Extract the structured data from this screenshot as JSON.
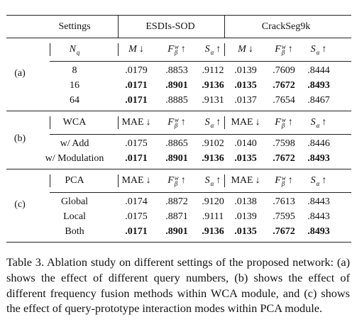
{
  "header": {
    "setting": "Settings",
    "groups": [
      "ESDIs-SOD",
      "CrackSeg9k"
    ]
  },
  "sections": [
    {
      "label": "(a)",
      "header": {
        "setting": {
          "symbol": "N",
          "sub": "q"
        },
        "metrics": [
          {
            "symbol": "M",
            "arrow": "↓"
          },
          {
            "symbol": "F",
            "sup": "w",
            "sub": "β",
            "arrow": "↑"
          },
          {
            "symbol": "S",
            "sub": "α",
            "arrow": "↑"
          },
          {
            "symbol": "M",
            "arrow": "↓"
          },
          {
            "symbol": "F",
            "sup": "w",
            "sub": "β",
            "arrow": "↑"
          },
          {
            "symbol": "S",
            "sub": "α",
            "arrow": "↑"
          }
        ]
      },
      "rows": [
        {
          "setting": "8",
          "values": [
            ".0179",
            ".8853",
            ".9112",
            ".0139",
            ".7609",
            ".8444"
          ],
          "bold": [
            false,
            false,
            false,
            false,
            false,
            false
          ]
        },
        {
          "setting": "16",
          "values": [
            ".0171",
            ".8901",
            ".9136",
            ".0135",
            ".7672",
            ".8493"
          ],
          "bold": [
            true,
            true,
            true,
            true,
            true,
            true
          ]
        },
        {
          "setting": "64",
          "values": [
            ".0171",
            ".8885",
            ".9131",
            ".0137",
            ".7654",
            ".8467"
          ],
          "bold": [
            true,
            false,
            false,
            false,
            false,
            false
          ]
        }
      ]
    },
    {
      "label": "(b)",
      "header": {
        "setting": {
          "symbol": "WCA"
        },
        "metrics": [
          {
            "symbol": "MAE",
            "arrow": "↓"
          },
          {
            "symbol": "F",
            "sup": "w",
            "sub": "β",
            "arrow": "↑"
          },
          {
            "symbol": "S",
            "sub": "α",
            "arrow": "↑"
          },
          {
            "symbol": "MAE",
            "arrow": "↓"
          },
          {
            "symbol": "F",
            "sup": "w",
            "sub": "β",
            "arrow": "↑"
          },
          {
            "symbol": "S",
            "sub": "α",
            "arrow": "↑"
          }
        ]
      },
      "rows": [
        {
          "setting": "w/ Add",
          "values": [
            ".0175",
            ".8865",
            ".9102",
            ".0140",
            ".7598",
            ".8446"
          ],
          "bold": [
            false,
            false,
            false,
            false,
            false,
            false
          ]
        },
        {
          "setting": "w/ Modulation",
          "values": [
            ".0171",
            ".8901",
            ".9136",
            ".0135",
            ".7672",
            ".8493"
          ],
          "bold": [
            true,
            true,
            true,
            true,
            true,
            true
          ]
        }
      ]
    },
    {
      "label": "(c)",
      "header": {
        "setting": {
          "symbol": "PCA"
        },
        "metrics": [
          {
            "symbol": "MAE",
            "arrow": "↓"
          },
          {
            "symbol": "F",
            "sup": "w",
            "sub": "β",
            "arrow": "↑"
          },
          {
            "symbol": "S",
            "sub": "α",
            "arrow": "↑"
          },
          {
            "symbol": "MAE",
            "arrow": "↓"
          },
          {
            "symbol": "F",
            "sup": "w",
            "sub": "β",
            "arrow": "↑"
          },
          {
            "symbol": "S",
            "sub": "α",
            "arrow": "↑"
          }
        ]
      },
      "rows": [
        {
          "setting": "Global",
          "values": [
            ".0174",
            ".8872",
            ".9120",
            ".0138",
            ".7613",
            ".8443"
          ],
          "bold": [
            false,
            false,
            false,
            false,
            false,
            false
          ]
        },
        {
          "setting": "Local",
          "values": [
            ".0175",
            ".8871",
            ".9111",
            ".0139",
            ".7595",
            ".8443"
          ],
          "bold": [
            false,
            false,
            false,
            false,
            false,
            false
          ]
        },
        {
          "setting": "Both",
          "values": [
            ".0171",
            ".8901",
            ".9136",
            ".0135",
            ".7672",
            ".8493"
          ],
          "bold": [
            true,
            true,
            true,
            true,
            true,
            true
          ]
        }
      ]
    }
  ],
  "caption": "Table 3. Ablation study on different settings of the proposed network: (a) shows the effect of different query numbers, (b) shows the effect of different frequency fusion methods within WCA module, and (c) shows the effect of query-prototype interaction modes within PCA module."
}
